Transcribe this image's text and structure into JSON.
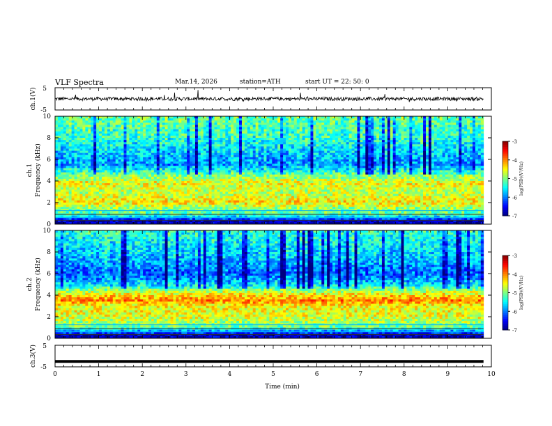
{
  "header": {
    "title": "VLF  Spectra",
    "date": "Mar.14, 2026",
    "station": "station=ATH",
    "start_time": "start  UT  =    22: 50: 0"
  },
  "chart_data": [
    {
      "type": "line",
      "panel": "ch1-waveform",
      "ylabel": "ch.1(V)",
      "ytick_labels": [
        "5",
        "-5"
      ],
      "ylim": [
        -5,
        5
      ],
      "xlim": [
        0,
        10
      ],
      "description_values": "noisy waveform centered near 0 V with spikes up to about +3 and -1.5 V",
      "data_end_min": 9.82
    },
    {
      "type": "heatmap",
      "panel": "ch1-spectrogram",
      "ylabel": "ch.1\nFrequency  (kHz)",
      "ylabel_line1": "ch.1",
      "ylabel_line2": "Frequency  (kHz)",
      "ytick_labels": [
        "0",
        "2",
        "4",
        "6",
        "8",
        "10"
      ],
      "ylim": [
        0,
        10
      ],
      "xlim": [
        0,
        10
      ],
      "colorbar": {
        "label": "log(PSD)(V²/Hz)",
        "ticks": [
          "-3",
          "-4",
          "-5",
          "-6",
          "-7"
        ],
        "range": [
          -7,
          -3
        ]
      },
      "profile": [
        {
          "f": 0.3,
          "v": -6.8
        },
        {
          "f": 0.8,
          "v": -5.3
        },
        {
          "f": 1.5,
          "v": -4.9
        },
        {
          "f": 2.0,
          "v": -4.4
        },
        {
          "f": 3.0,
          "v": -4.8
        },
        {
          "f": 3.8,
          "v": -4.5
        },
        {
          "f": 4.5,
          "v": -5.0
        },
        {
          "f": 5.5,
          "v": -5.9
        },
        {
          "f": 6.5,
          "v": -5.7
        },
        {
          "f": 8.0,
          "v": -5.3
        },
        {
          "f": 10.0,
          "v": -5.1
        }
      ]
    },
    {
      "type": "heatmap",
      "panel": "ch2-spectrogram",
      "ylabel_line1": "ch.2",
      "ylabel_line2": "Frequency  (kHz)",
      "ytick_labels": [
        "0",
        "2",
        "4",
        "6",
        "8",
        "10"
      ],
      "ylim": [
        0,
        10
      ],
      "xlim": [
        0,
        10
      ],
      "colorbar": {
        "label": "log(PSD)(V²/Hz)",
        "ticks": [
          "-3",
          "-4",
          "-5",
          "-6",
          "-7"
        ],
        "range": [
          -7,
          -3
        ]
      },
      "profile": [
        {
          "f": 0.3,
          "v": -6.8
        },
        {
          "f": 1.0,
          "v": -5.1
        },
        {
          "f": 2.0,
          "v": -4.6
        },
        {
          "f": 3.0,
          "v": -4.5
        },
        {
          "f": 3.5,
          "v": -4.0
        },
        {
          "f": 4.2,
          "v": -4.6
        },
        {
          "f": 5.0,
          "v": -5.6
        },
        {
          "f": 6.0,
          "v": -6.1
        },
        {
          "f": 7.5,
          "v": -5.7
        },
        {
          "f": 10.0,
          "v": -5.3
        }
      ]
    },
    {
      "type": "line",
      "panel": "ch3-waveform",
      "ylabel": "ch.3(V)",
      "ytick_labels": [
        "5",
        "-5"
      ],
      "ylim": [
        -5,
        5
      ],
      "xlim": [
        0,
        10
      ],
      "values_note": "flat trace at about -2.5 V",
      "level": -2.5,
      "data_end_min": 9.82
    }
  ],
  "x_axis": {
    "label": "Time  (min)",
    "tick_labels": [
      "0",
      "1",
      "2",
      "3",
      "4",
      "5",
      "6",
      "7",
      "8",
      "9",
      "10"
    ]
  }
}
